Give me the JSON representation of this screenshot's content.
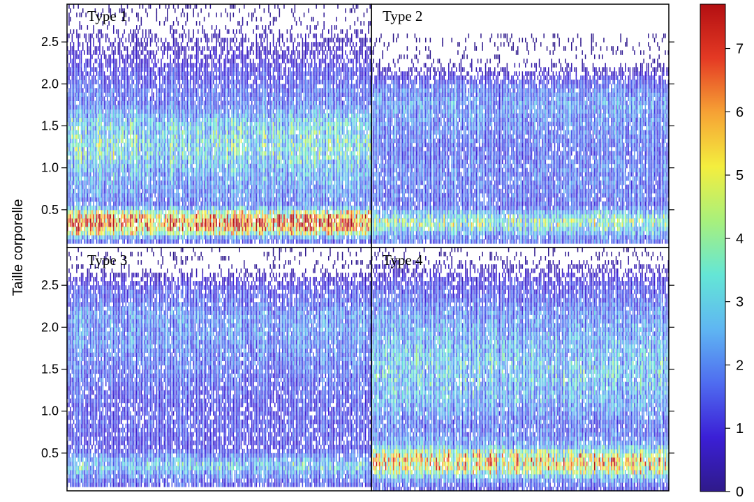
{
  "chart_data": {
    "type": "heatmap",
    "ylabel": "Taille corporelle",
    "xlabel": "",
    "ylim": [
      0.05,
      2.95
    ],
    "y_ticks": [
      "0.5",
      "1.0",
      "1.5",
      "2.0",
      "2.5"
    ],
    "colorbar": {
      "range": [
        0,
        7.7
      ],
      "ticks": [
        "0",
        "1",
        "2",
        "3",
        "4",
        "5",
        "6",
        "7"
      ],
      "colors": [
        "#2f1a8a",
        "#3b1fd6",
        "#4f6cf0",
        "#5fb6f2",
        "#64e6d6",
        "#a8f07c",
        "#f4ee3e",
        "#f6a235",
        "#e43a24",
        "#b30f12"
      ]
    },
    "panels": [
      {
        "label": "Type 1",
        "y_extent": [
          0.1,
          2.95
        ],
        "mean_profile": [
          [
            0.15,
            1.4
          ],
          [
            0.25,
            5.2
          ],
          [
            0.35,
            7.0
          ],
          [
            0.45,
            5.2
          ],
          [
            0.55,
            1.6
          ],
          [
            0.7,
            2.0
          ],
          [
            0.85,
            2.2
          ],
          [
            1.0,
            2.4
          ],
          [
            1.1,
            2.9
          ],
          [
            1.25,
            3.2
          ],
          [
            1.4,
            3.0
          ],
          [
            1.55,
            2.8
          ],
          [
            1.65,
            2.2
          ],
          [
            1.8,
            1.5
          ],
          [
            1.9,
            1.6
          ],
          [
            2.0,
            1.3
          ],
          [
            2.1,
            1.2
          ],
          [
            2.2,
            1.0
          ],
          [
            2.3,
            0.7
          ],
          [
            2.45,
            0.5
          ],
          [
            2.6,
            0.3
          ],
          [
            2.75,
            0.15
          ],
          [
            2.9,
            0.05
          ]
        ]
      },
      {
        "label": "Type 2",
        "y_extent": [
          0.1,
          2.6
        ],
        "mean_profile": [
          [
            0.15,
            1.6
          ],
          [
            0.25,
            2.6
          ],
          [
            0.35,
            4.0
          ],
          [
            0.45,
            2.8
          ],
          [
            0.55,
            1.4
          ],
          [
            0.7,
            1.6
          ],
          [
            0.85,
            1.7
          ],
          [
            1.0,
            1.7
          ],
          [
            1.2,
            1.5
          ],
          [
            1.4,
            1.7
          ],
          [
            1.6,
            1.9
          ],
          [
            1.75,
            2.1
          ],
          [
            1.9,
            1.8
          ],
          [
            2.0,
            1.4
          ],
          [
            2.1,
            0.8
          ],
          [
            2.2,
            0.3
          ],
          [
            2.35,
            0.08
          ],
          [
            2.5,
            0.03
          ]
        ]
      },
      {
        "label": "Type 3",
        "y_extent": [
          0.1,
          2.95
        ],
        "mean_profile": [
          [
            0.15,
            1.3
          ],
          [
            0.25,
            2.0
          ],
          [
            0.35,
            3.0
          ],
          [
            0.45,
            2.0
          ],
          [
            0.55,
            1.1
          ],
          [
            0.7,
            1.2
          ],
          [
            0.85,
            1.3
          ],
          [
            1.0,
            1.2
          ],
          [
            1.2,
            1.3
          ],
          [
            1.4,
            1.5
          ],
          [
            1.6,
            1.7
          ],
          [
            1.8,
            1.9
          ],
          [
            2.0,
            2.0
          ],
          [
            2.15,
            2.0
          ],
          [
            2.3,
            1.5
          ],
          [
            2.45,
            1.3
          ],
          [
            2.55,
            0.8
          ],
          [
            2.7,
            0.15
          ],
          [
            2.85,
            0.05
          ]
        ]
      },
      {
        "label": "Type 4",
        "y_extent": [
          0.05,
          2.95
        ],
        "mean_profile": [
          [
            0.1,
            1.2
          ],
          [
            0.2,
            2.2
          ],
          [
            0.3,
            4.5
          ],
          [
            0.4,
            5.5
          ],
          [
            0.5,
            4.2
          ],
          [
            0.6,
            2.2
          ],
          [
            0.75,
            1.6
          ],
          [
            0.9,
            1.7
          ],
          [
            1.05,
            2.2
          ],
          [
            1.25,
            2.5
          ],
          [
            1.45,
            2.7
          ],
          [
            1.65,
            2.6
          ],
          [
            1.85,
            2.3
          ],
          [
            2.05,
            2.1
          ],
          [
            2.2,
            1.9
          ],
          [
            2.35,
            1.4
          ],
          [
            2.5,
            1.2
          ],
          [
            2.65,
            0.6
          ],
          [
            2.8,
            0.2
          ],
          [
            2.9,
            0.05
          ]
        ]
      }
    ]
  }
}
